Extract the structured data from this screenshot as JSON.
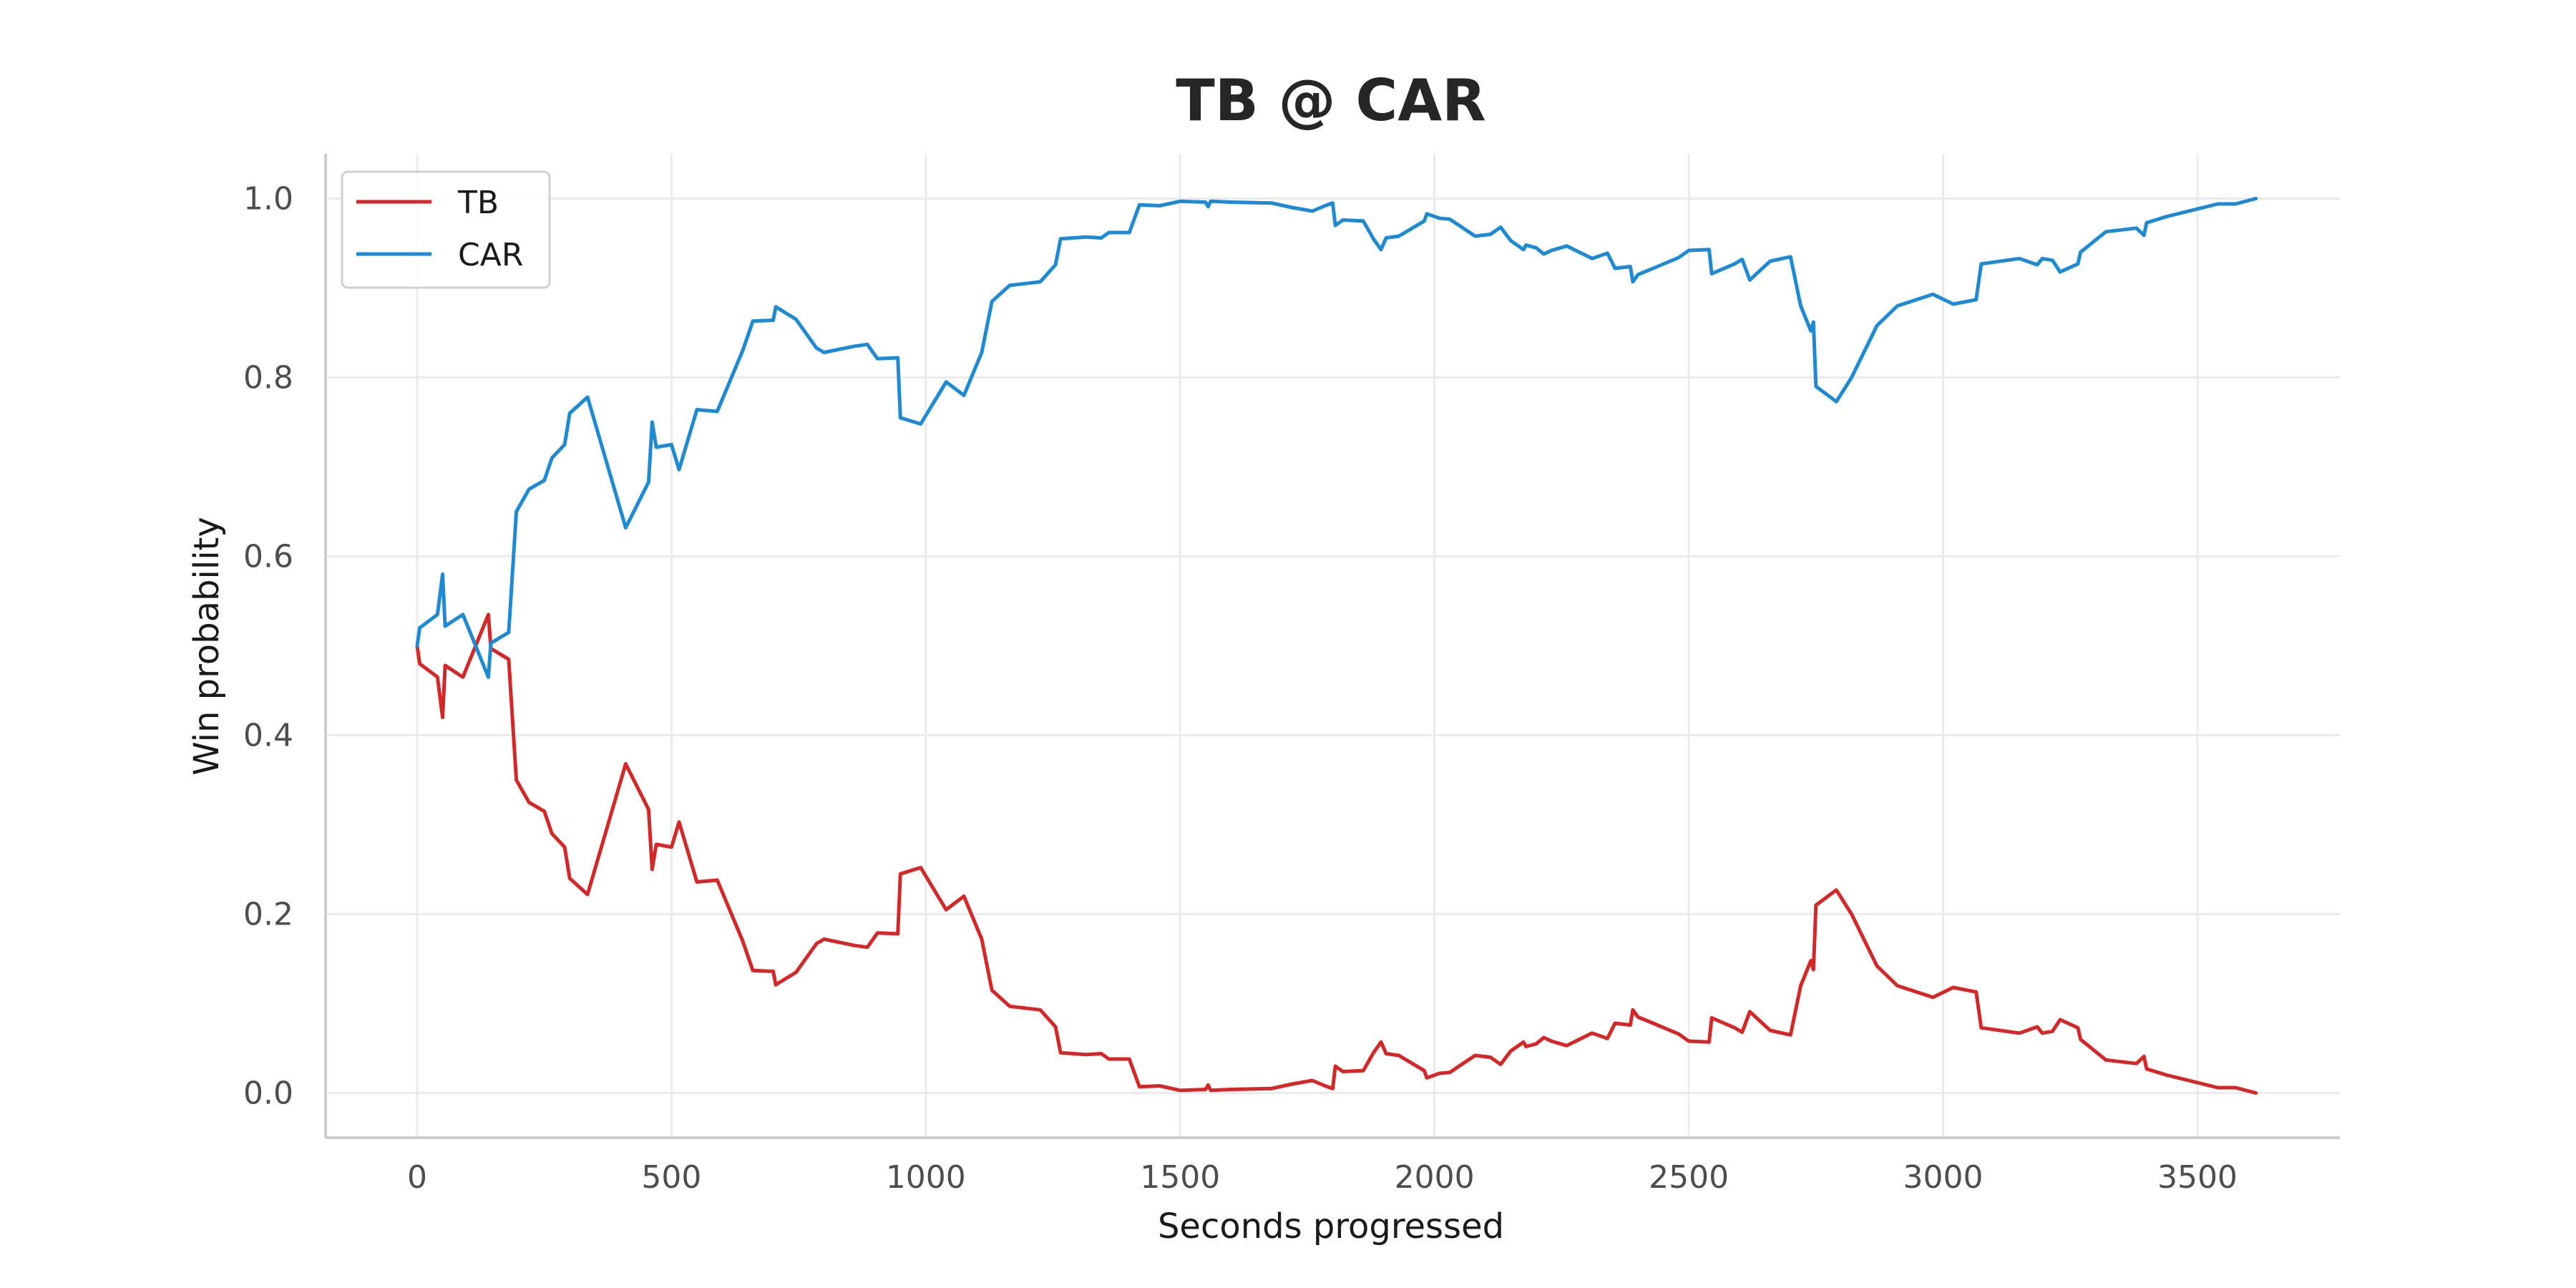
{
  "chart_data": {
    "type": "line",
    "title": "TB @ CAR",
    "xlabel": "Seconds progressed",
    "ylabel": "Win probability",
    "xlim": [
      -180,
      3780
    ],
    "ylim": [
      -0.05,
      1.05
    ],
    "x_ticks": [
      0,
      500,
      1000,
      1500,
      2000,
      2500,
      3000,
      3500
    ],
    "y_ticks": [
      0.0,
      0.2,
      0.4,
      0.6,
      0.8,
      1.0
    ],
    "x_tick_labels": [
      "0",
      "500",
      "1000",
      "1500",
      "2000",
      "2500",
      "3000",
      "3500"
    ],
    "y_tick_labels": [
      "0.0",
      "0.2",
      "0.4",
      "0.6",
      "0.8",
      "1.0"
    ],
    "grid": true,
    "legend_position": "top-left",
    "series": [
      {
        "name": "TB",
        "color": "#d62728",
        "points": [
          [
            0,
            0.5
          ],
          [
            5,
            0.48
          ],
          [
            40,
            0.465
          ],
          [
            50,
            0.42
          ],
          [
            55,
            0.478
          ],
          [
            90,
            0.465
          ],
          [
            140,
            0.535
          ],
          [
            145,
            0.497
          ],
          [
            180,
            0.485
          ],
          [
            195,
            0.35
          ],
          [
            220,
            0.325
          ],
          [
            250,
            0.315
          ],
          [
            265,
            0.29
          ],
          [
            290,
            0.275
          ],
          [
            300,
            0.24
          ],
          [
            335,
            0.222
          ],
          [
            410,
            0.368
          ],
          [
            455,
            0.317
          ],
          [
            462,
            0.25
          ],
          [
            470,
            0.278
          ],
          [
            500,
            0.275
          ],
          [
            515,
            0.303
          ],
          [
            550,
            0.236
          ],
          [
            590,
            0.238
          ],
          [
            640,
            0.17
          ],
          [
            660,
            0.137
          ],
          [
            700,
            0.136
          ],
          [
            705,
            0.121
          ],
          [
            745,
            0.135
          ],
          [
            785,
            0.167
          ],
          [
            800,
            0.172
          ],
          [
            860,
            0.165
          ],
          [
            885,
            0.163
          ],
          [
            905,
            0.179
          ],
          [
            945,
            0.178
          ],
          [
            950,
            0.245
          ],
          [
            990,
            0.252
          ],
          [
            1040,
            0.205
          ],
          [
            1075,
            0.22
          ],
          [
            1110,
            0.172
          ],
          [
            1130,
            0.115
          ],
          [
            1165,
            0.097
          ],
          [
            1225,
            0.093
          ],
          [
            1255,
            0.074
          ],
          [
            1265,
            0.045
          ],
          [
            1315,
            0.043
          ],
          [
            1345,
            0.044
          ],
          [
            1360,
            0.038
          ],
          [
            1400,
            0.038
          ],
          [
            1420,
            0.007
          ],
          [
            1460,
            0.008
          ],
          [
            1500,
            0.003
          ],
          [
            1550,
            0.004
          ],
          [
            1555,
            0.009
          ],
          [
            1560,
            0.003
          ],
          [
            1600,
            0.004
          ],
          [
            1680,
            0.005
          ],
          [
            1720,
            0.01
          ],
          [
            1760,
            0.014
          ],
          [
            1785,
            0.008
          ],
          [
            1800,
            0.005
          ],
          [
            1805,
            0.03
          ],
          [
            1820,
            0.024
          ],
          [
            1860,
            0.025
          ],
          [
            1880,
            0.045
          ],
          [
            1895,
            0.057
          ],
          [
            1905,
            0.044
          ],
          [
            1930,
            0.042
          ],
          [
            1980,
            0.025
          ],
          [
            1985,
            0.017
          ],
          [
            2010,
            0.022
          ],
          [
            2030,
            0.023
          ],
          [
            2080,
            0.042
          ],
          [
            2110,
            0.04
          ],
          [
            2130,
            0.032
          ],
          [
            2150,
            0.047
          ],
          [
            2175,
            0.057
          ],
          [
            2180,
            0.052
          ],
          [
            2200,
            0.055
          ],
          [
            2215,
            0.062
          ],
          [
            2230,
            0.058
          ],
          [
            2260,
            0.053
          ],
          [
            2310,
            0.067
          ],
          [
            2340,
            0.061
          ],
          [
            2355,
            0.078
          ],
          [
            2385,
            0.076
          ],
          [
            2390,
            0.093
          ],
          [
            2400,
            0.085
          ],
          [
            2430,
            0.078
          ],
          [
            2480,
            0.066
          ],
          [
            2500,
            0.058
          ],
          [
            2540,
            0.057
          ],
          [
            2545,
            0.084
          ],
          [
            2590,
            0.073
          ],
          [
            2605,
            0.068
          ],
          [
            2620,
            0.091
          ],
          [
            2660,
            0.07
          ],
          [
            2700,
            0.065
          ],
          [
            2720,
            0.12
          ],
          [
            2740,
            0.148
          ],
          [
            2745,
            0.138
          ],
          [
            2750,
            0.21
          ],
          [
            2790,
            0.227
          ],
          [
            2820,
            0.2
          ],
          [
            2870,
            0.142
          ],
          [
            2910,
            0.12
          ],
          [
            2980,
            0.107
          ],
          [
            3020,
            0.118
          ],
          [
            3065,
            0.113
          ],
          [
            3075,
            0.073
          ],
          [
            3150,
            0.067
          ],
          [
            3185,
            0.074
          ],
          [
            3195,
            0.067
          ],
          [
            3215,
            0.069
          ],
          [
            3230,
            0.082
          ],
          [
            3265,
            0.073
          ],
          [
            3270,
            0.06
          ],
          [
            3320,
            0.037
          ],
          [
            3380,
            0.033
          ],
          [
            3395,
            0.041
          ],
          [
            3400,
            0.027
          ],
          [
            3440,
            0.02
          ],
          [
            3540,
            0.006
          ],
          [
            3575,
            0.006
          ],
          [
            3615,
            0.0
          ]
        ]
      },
      {
        "name": "CAR",
        "color": "#1f8ad4",
        "points": [
          [
            0,
            0.5
          ],
          [
            5,
            0.52
          ],
          [
            40,
            0.535
          ],
          [
            50,
            0.58
          ],
          [
            55,
            0.522
          ],
          [
            90,
            0.535
          ],
          [
            140,
            0.465
          ],
          [
            145,
            0.503
          ],
          [
            180,
            0.515
          ],
          [
            195,
            0.65
          ],
          [
            220,
            0.675
          ],
          [
            250,
            0.685
          ],
          [
            265,
            0.71
          ],
          [
            290,
            0.725
          ],
          [
            300,
            0.76
          ],
          [
            335,
            0.778
          ],
          [
            410,
            0.632
          ],
          [
            455,
            0.683
          ],
          [
            462,
            0.75
          ],
          [
            470,
            0.722
          ],
          [
            500,
            0.725
          ],
          [
            515,
            0.697
          ],
          [
            550,
            0.764
          ],
          [
            590,
            0.762
          ],
          [
            640,
            0.83
          ],
          [
            660,
            0.863
          ],
          [
            700,
            0.864
          ],
          [
            705,
            0.879
          ],
          [
            745,
            0.865
          ],
          [
            785,
            0.833
          ],
          [
            800,
            0.828
          ],
          [
            860,
            0.835
          ],
          [
            885,
            0.837
          ],
          [
            905,
            0.821
          ],
          [
            945,
            0.822
          ],
          [
            950,
            0.755
          ],
          [
            990,
            0.748
          ],
          [
            1040,
            0.795
          ],
          [
            1075,
            0.78
          ],
          [
            1110,
            0.828
          ],
          [
            1130,
            0.885
          ],
          [
            1165,
            0.903
          ],
          [
            1225,
            0.907
          ],
          [
            1255,
            0.926
          ],
          [
            1265,
            0.955
          ],
          [
            1315,
            0.957
          ],
          [
            1345,
            0.956
          ],
          [
            1360,
            0.962
          ],
          [
            1400,
            0.962
          ],
          [
            1420,
            0.993
          ],
          [
            1460,
            0.992
          ],
          [
            1500,
            0.997
          ],
          [
            1550,
            0.996
          ],
          [
            1555,
            0.991
          ],
          [
            1560,
            0.997
          ],
          [
            1600,
            0.996
          ],
          [
            1680,
            0.995
          ],
          [
            1720,
            0.99
          ],
          [
            1760,
            0.986
          ],
          [
            1785,
            0.992
          ],
          [
            1800,
            0.995
          ],
          [
            1805,
            0.97
          ],
          [
            1820,
            0.976
          ],
          [
            1860,
            0.975
          ],
          [
            1880,
            0.955
          ],
          [
            1895,
            0.943
          ],
          [
            1905,
            0.956
          ],
          [
            1930,
            0.958
          ],
          [
            1980,
            0.975
          ],
          [
            1985,
            0.983
          ],
          [
            2010,
            0.978
          ],
          [
            2030,
            0.977
          ],
          [
            2080,
            0.958
          ],
          [
            2110,
            0.96
          ],
          [
            2130,
            0.968
          ],
          [
            2150,
            0.953
          ],
          [
            2175,
            0.943
          ],
          [
            2180,
            0.948
          ],
          [
            2200,
            0.945
          ],
          [
            2215,
            0.938
          ],
          [
            2230,
            0.942
          ],
          [
            2260,
            0.947
          ],
          [
            2310,
            0.933
          ],
          [
            2340,
            0.939
          ],
          [
            2355,
            0.922
          ],
          [
            2385,
            0.924
          ],
          [
            2390,
            0.907
          ],
          [
            2400,
            0.915
          ],
          [
            2430,
            0.922
          ],
          [
            2480,
            0.934
          ],
          [
            2500,
            0.942
          ],
          [
            2540,
            0.943
          ],
          [
            2545,
            0.916
          ],
          [
            2590,
            0.927
          ],
          [
            2605,
            0.932
          ],
          [
            2620,
            0.909
          ],
          [
            2660,
            0.93
          ],
          [
            2700,
            0.935
          ],
          [
            2720,
            0.88
          ],
          [
            2740,
            0.852
          ],
          [
            2745,
            0.862
          ],
          [
            2750,
            0.79
          ],
          [
            2790,
            0.773
          ],
          [
            2820,
            0.8
          ],
          [
            2870,
            0.858
          ],
          [
            2910,
            0.88
          ],
          [
            2980,
            0.893
          ],
          [
            3020,
            0.882
          ],
          [
            3065,
            0.887
          ],
          [
            3075,
            0.927
          ],
          [
            3150,
            0.933
          ],
          [
            3185,
            0.926
          ],
          [
            3195,
            0.933
          ],
          [
            3215,
            0.931
          ],
          [
            3230,
            0.918
          ],
          [
            3265,
            0.927
          ],
          [
            3270,
            0.94
          ],
          [
            3320,
            0.963
          ],
          [
            3380,
            0.967
          ],
          [
            3395,
            0.959
          ],
          [
            3400,
            0.973
          ],
          [
            3440,
            0.98
          ],
          [
            3540,
            0.994
          ],
          [
            3575,
            0.994
          ],
          [
            3615,
            1.0
          ]
        ]
      }
    ]
  }
}
